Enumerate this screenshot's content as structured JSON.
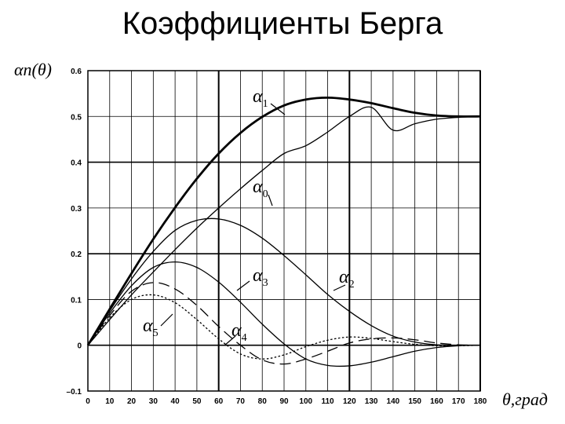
{
  "slide": {
    "title": "Коэффициенты Берга"
  },
  "chart_data": {
    "type": "line",
    "title": "",
    "xlabel": "θ,град",
    "ylabel": "αn(θ)",
    "xlim": [
      0,
      180
    ],
    "ylim": [
      -0.1,
      0.6
    ],
    "x_ticks": [
      0,
      10,
      20,
      30,
      40,
      50,
      60,
      70,
      80,
      90,
      100,
      110,
      120,
      130,
      140,
      150,
      160,
      170,
      180
    ],
    "y_ticks": [
      -0.1,
      0,
      0.1,
      0.2,
      0.3,
      0.4,
      0.5,
      0.6
    ],
    "x_tick_labels": [
      "0",
      "10",
      "20",
      "30",
      "40",
      "50",
      "60",
      "70",
      "80",
      "90",
      "100",
      "110",
      "120",
      "130",
      "140",
      "150",
      "160",
      "170",
      "180"
    ],
    "y_tick_labels": [
      "–0.1",
      "0",
      "0.1",
      "0.2",
      "0.3",
      "0.4",
      "0.5",
      "0.6"
    ],
    "grid": true,
    "x": [
      0,
      10,
      20,
      30,
      40,
      50,
      60,
      70,
      80,
      90,
      100,
      110,
      120,
      130,
      140,
      150,
      160,
      170,
      180
    ],
    "series": [
      {
        "name": "α1",
        "label_main": "α",
        "label_sub": "1",
        "style": "bold",
        "values": [
          0,
          0.079,
          0.157,
          0.232,
          0.301,
          0.364,
          0.419,
          0.464,
          0.499,
          0.524,
          0.537,
          0.541,
          0.537,
          0.529,
          0.518,
          0.508,
          0.502,
          0.5,
          0.5
        ]
      },
      {
        "name": "α0",
        "label_main": "α",
        "label_sub": "0",
        "style": "solid",
        "values": [
          0,
          0.056,
          0.11,
          0.16,
          0.209,
          0.256,
          0.3,
          0.342,
          0.382,
          0.419,
          0.436,
          0.466,
          0.5,
          0.52,
          0.47,
          0.484,
          0.494,
          0.498,
          0.5
        ]
      },
      {
        "name": "α2",
        "label_main": "α",
        "label_sub": "2",
        "style": "solid",
        "values": [
          0,
          0.075,
          0.145,
          0.205,
          0.251,
          0.273,
          0.276,
          0.262,
          0.234,
          0.196,
          0.154,
          0.111,
          0.074,
          0.043,
          0.02,
          0.007,
          0.001,
          0,
          0
        ]
      },
      {
        "name": "α3",
        "label_main": "α",
        "label_sub": "3",
        "style": "solid",
        "values": [
          0,
          0.07,
          0.13,
          0.17,
          0.182,
          0.17,
          0.138,
          0.094,
          0.046,
          0.003,
          -0.03,
          -0.044,
          -0.045,
          -0.037,
          -0.025,
          -0.013,
          -0.005,
          -0.001,
          0
        ]
      },
      {
        "name": "α4",
        "label_main": "α",
        "label_sub": "4",
        "style": "dashed",
        "values": [
          0,
          0.065,
          0.118,
          0.137,
          0.123,
          0.087,
          0.041,
          0.0,
          -0.032,
          -0.041,
          -0.03,
          -0.013,
          0.005,
          0.014,
          0.016,
          0.012,
          0.005,
          0.001,
          0
        ]
      },
      {
        "name": "α5",
        "label_main": "α",
        "label_sub": "5",
        "style": "dotted",
        "values": [
          0,
          0.06,
          0.1,
          0.11,
          0.093,
          0.056,
          0.014,
          -0.019,
          -0.03,
          -0.021,
          -0.003,
          0.011,
          0.018,
          0.015,
          0.008,
          0.002,
          -0.001,
          -0.001,
          0
        ]
      }
    ]
  }
}
